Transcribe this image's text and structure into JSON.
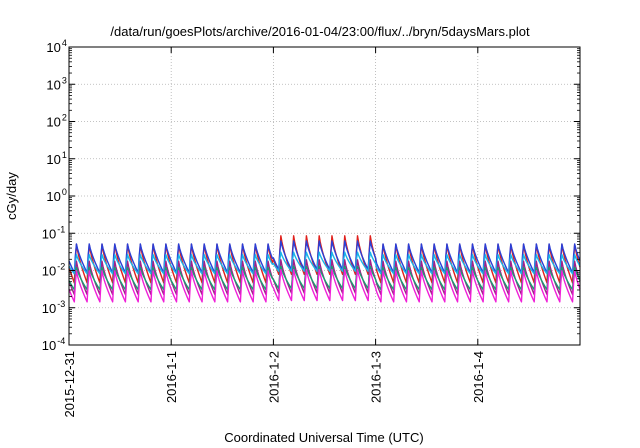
{
  "chart_data": {
    "type": "line",
    "title": "/data/run/goesPlots/archive/2016-01-04/23:00/flux/../bryn/5daysMars.plot",
    "xlabel": "Coordinated Universal Time (UTC)",
    "ylabel": "cGy/day",
    "y_scale": "log",
    "ylim": [
      0.0001,
      10000
    ],
    "y_ticks": [
      {
        "value": 0.0001,
        "base": "10",
        "exp": "-4"
      },
      {
        "value": 0.001,
        "base": "10",
        "exp": "-3"
      },
      {
        "value": 0.01,
        "base": "10",
        "exp": "-2"
      },
      {
        "value": 0.1,
        "base": "10",
        "exp": "-1"
      },
      {
        "value": 1,
        "base": "10",
        "exp": "0"
      },
      {
        "value": 10,
        "base": "10",
        "exp": "1"
      },
      {
        "value": 100,
        "base": "10",
        "exp": "2"
      },
      {
        "value": 1000,
        "base": "10",
        "exp": "3"
      },
      {
        "value": 10000,
        "base": "10",
        "exp": "4"
      }
    ],
    "xlim": [
      "2015-12-31 00:00",
      "2016-01-05 00:00"
    ],
    "x_ticks": [
      {
        "value": "2015-12-31 00:00",
        "label": "2015-12-31"
      },
      {
        "value": "2016-01-01 00:00",
        "label": "2016-1-1"
      },
      {
        "value": "2016-01-02 00:00",
        "label": "2016-1-2"
      },
      {
        "value": "2016-01-03 00:00",
        "label": "2016-1-3"
      },
      {
        "value": "2016-01-04 00:00",
        "label": "2016-1-4"
      }
    ],
    "grid": true,
    "legend": "none",
    "cycle_hours": 3,
    "series": [
      {
        "color": "#e0201c",
        "base_peak": 0.065,
        "base_trough": 0.0045,
        "enhanced_peak": 0.11,
        "enhanced_period": [
          "2016-01-02 00:00",
          "2016-01-03 00:00"
        ]
      },
      {
        "color": "#2a3fd6",
        "base_peak": 0.062,
        "base_trough": 0.0085,
        "enhanced_peak": 0.075,
        "enhanced_period": [
          "2016-01-02 00:00",
          "2016-01-03 00:00"
        ]
      },
      {
        "color": "#1ab4e8",
        "base_peak": 0.03,
        "base_trough": 0.008,
        "enhanced_peak": 0.035,
        "enhanced_period": [
          "2016-01-02 00:00",
          "2016-01-03 00:00"
        ]
      },
      {
        "color": "#a0208a",
        "base_peak": 0.022,
        "base_trough": 0.0022,
        "enhanced_peak": 0.024,
        "enhanced_period": [
          "2016-01-02 00:00",
          "2016-01-03 00:00"
        ]
      },
      {
        "color": "#18a070",
        "base_peak": 0.014,
        "base_trough": 0.003,
        "enhanced_peak": 0.015,
        "enhanced_period": [
          "2016-01-02 00:00",
          "2016-01-03 00:00"
        ]
      },
      {
        "color": "#f020d8",
        "base_peak": 0.012,
        "base_trough": 0.0014,
        "enhanced_peak": 0.013,
        "enhanced_period": [
          "2016-01-02 00:00",
          "2016-01-03 00:00"
        ]
      }
    ]
  }
}
